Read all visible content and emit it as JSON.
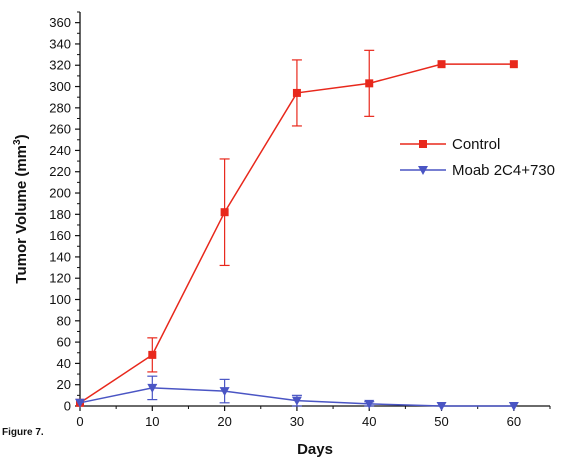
{
  "figure_label": "Figure 7.",
  "chart_data": {
    "type": "line",
    "xlabel": "Days",
    "ylabel": "Tumor Volume (mm",
    "ylabel_superscript": "3",
    "ylabel_suffix": ")",
    "xlim": [
      0,
      65
    ],
    "ylim": [
      0,
      370
    ],
    "xticks": [
      0,
      10,
      20,
      30,
      40,
      50,
      60
    ],
    "yticks": [
      0,
      20,
      40,
      60,
      80,
      100,
      120,
      140,
      160,
      180,
      200,
      220,
      240,
      260,
      280,
      300,
      320,
      340,
      360
    ],
    "grid": false,
    "legend_position": "right",
    "series": [
      {
        "name": "Control",
        "color": "#e8281c",
        "marker": "square",
        "x": [
          0,
          10,
          20,
          30,
          40,
          50,
          60
        ],
        "y": [
          3,
          48,
          182,
          294,
          303,
          321,
          321
        ],
        "error": [
          0,
          16,
          50,
          31,
          31,
          0,
          0
        ]
      },
      {
        "name": "Moab 2C4+730",
        "color": "#4a55c4",
        "marker": "triangle-down",
        "x": [
          0,
          10,
          20,
          30,
          40,
          50,
          60
        ],
        "y": [
          3,
          17,
          14,
          5,
          2,
          0,
          0
        ],
        "error": [
          0,
          11,
          11,
          5,
          2,
          0,
          0
        ]
      }
    ]
  }
}
